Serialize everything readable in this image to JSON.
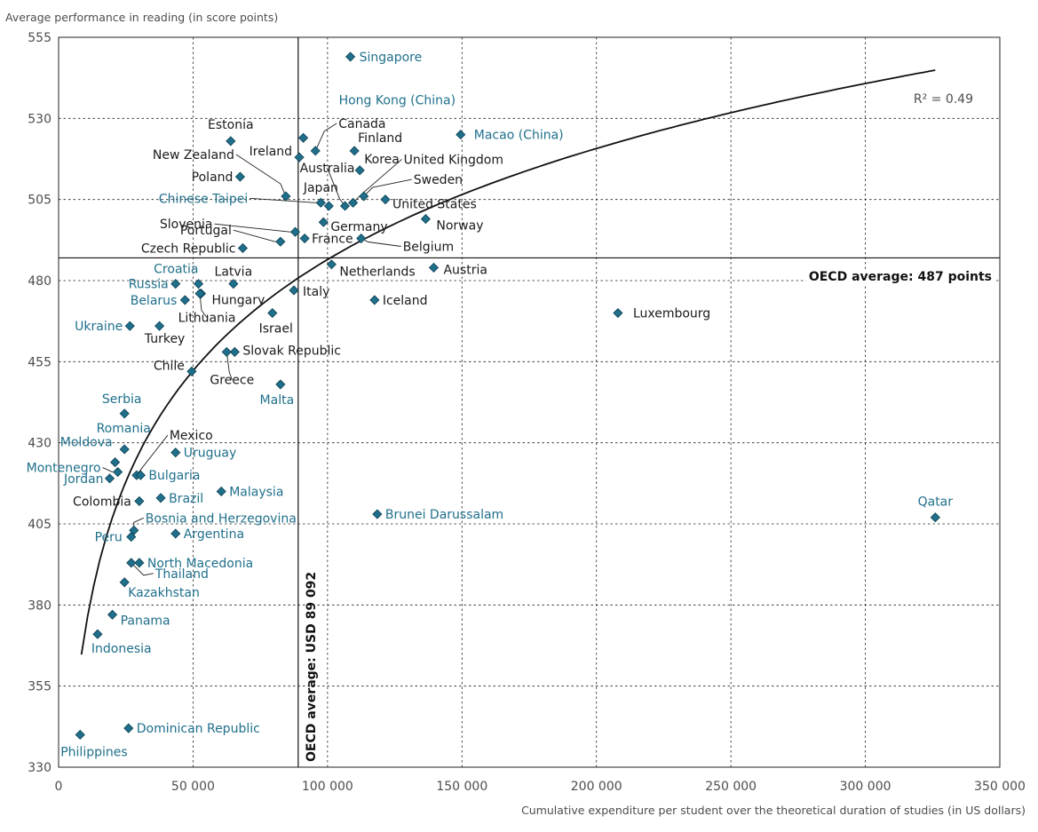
{
  "chart_data": {
    "type": "scatter",
    "ylabel": "Average performance in reading (in score points)",
    "xlabel": "Cumulative expenditure per student over the theoretical duration of studies (in US dollars)",
    "xlim": [
      0,
      350000
    ],
    "ylim": [
      330,
      555
    ],
    "x_ticks": [
      0,
      50000,
      100000,
      150000,
      200000,
      250000,
      300000,
      350000
    ],
    "x_tick_labels": [
      "0",
      "50 000",
      "100 000",
      "150 000",
      "200 000",
      "250 000",
      "300 000",
      "350 000"
    ],
    "y_ticks": [
      330,
      355,
      380,
      405,
      430,
      455,
      480,
      505,
      530,
      555
    ],
    "y_tick_labels": [
      "330",
      "355",
      "380",
      "405",
      "430",
      "455",
      "480",
      "505",
      "530",
      "555"
    ],
    "grid": "dashed",
    "marker_color": "#1f6f8b",
    "partner_color": "#1f6f8b",
    "oecd_color": "#1a1a1a",
    "trend": {
      "type": "logarithmic",
      "r2_label": "R² = 0.49",
      "x_start": 8500,
      "x_end": 326000
    },
    "reference_lines": {
      "horizontal": {
        "value": 487,
        "label": "OECD average: 487 points"
      },
      "vertical": {
        "value": 89092,
        "label": "OECD average: USD 89 092"
      }
    },
    "points": [
      {
        "name": "Singapore",
        "x": 108500,
        "y": 549,
        "group": "partner"
      },
      {
        "name": "Hong Kong (China)",
        "x": 91000,
        "y": 524,
        "group": "partner"
      },
      {
        "name": "Canada",
        "x": 95500,
        "y": 520,
        "group": "oecd"
      },
      {
        "name": "Estonia",
        "x": 64000,
        "y": 523,
        "group": "oecd"
      },
      {
        "name": "Ireland",
        "x": 89500,
        "y": 518,
        "group": "oecd"
      },
      {
        "name": "Finland",
        "x": 110000,
        "y": 520,
        "group": "oecd"
      },
      {
        "name": "Macao (China)",
        "x": 149500,
        "y": 525,
        "group": "partner"
      },
      {
        "name": "Korea",
        "x": 112000,
        "y": 514,
        "group": "oecd"
      },
      {
        "name": "New Zealand",
        "x": 84500,
        "y": 506,
        "group": "oecd"
      },
      {
        "name": "Poland",
        "x": 67500,
        "y": 512,
        "group": "oecd"
      },
      {
        "name": "Australia",
        "x": 106500,
        "y": 503,
        "group": "oecd"
      },
      {
        "name": "United Kingdom",
        "x": 109500,
        "y": 504,
        "group": "oecd"
      },
      {
        "name": "Sweden",
        "x": 113500,
        "y": 506,
        "group": "oecd"
      },
      {
        "name": "United States",
        "x": 121500,
        "y": 505,
        "group": "oecd"
      },
      {
        "name": "Chinese Taipei",
        "x": 97500,
        "y": 504,
        "group": "partner"
      },
      {
        "name": "Japan",
        "x": 100500,
        "y": 503,
        "group": "oecd"
      },
      {
        "name": "Germany",
        "x": 98500,
        "y": 498,
        "group": "oecd"
      },
      {
        "name": "Norway",
        "x": 136500,
        "y": 499,
        "group": "oecd"
      },
      {
        "name": "Slovenia",
        "x": 88000,
        "y": 495,
        "group": "oecd"
      },
      {
        "name": "Portugal",
        "x": 82500,
        "y": 492,
        "group": "oecd"
      },
      {
        "name": "France",
        "x": 91500,
        "y": 493,
        "group": "oecd"
      },
      {
        "name": "Belgium",
        "x": 112500,
        "y": 493,
        "group": "oecd"
      },
      {
        "name": "Czech Republic",
        "x": 68500,
        "y": 490,
        "group": "oecd"
      },
      {
        "name": "Netherlands",
        "x": 101500,
        "y": 485,
        "group": "oecd"
      },
      {
        "name": "Austria",
        "x": 139500,
        "y": 484,
        "group": "oecd"
      },
      {
        "name": "Croatia",
        "x": 52000,
        "y": 479,
        "group": "partner"
      },
      {
        "name": "Russia",
        "x": 43500,
        "y": 479,
        "group": "partner"
      },
      {
        "name": "Latvia",
        "x": 65000,
        "y": 479,
        "group": "oecd"
      },
      {
        "name": "Belarus",
        "x": 47000,
        "y": 474,
        "group": "partner"
      },
      {
        "name": "Hungary",
        "x": 53000,
        "y": 476,
        "group": "oecd"
      },
      {
        "name": "Italy",
        "x": 87500,
        "y": 477,
        "group": "oecd"
      },
      {
        "name": "Iceland",
        "x": 117500,
        "y": 474,
        "group": "oecd"
      },
      {
        "name": "Israel",
        "x": 79500,
        "y": 470,
        "group": "oecd"
      },
      {
        "name": "Luxembourg",
        "x": 208000,
        "y": 470,
        "group": "oecd"
      },
      {
        "name": "Lithuania",
        "x": 52500,
        "y": 476,
        "group": "oecd"
      },
      {
        "name": "Ukraine",
        "x": 26500,
        "y": 466,
        "group": "partner"
      },
      {
        "name": "Turkey",
        "x": 37500,
        "y": 466,
        "group": "oecd"
      },
      {
        "name": "Slovak Republic",
        "x": 65500,
        "y": 458,
        "group": "oecd"
      },
      {
        "name": "Greece",
        "x": 62500,
        "y": 458,
        "group": "oecd"
      },
      {
        "name": "Chile",
        "x": 49500,
        "y": 452,
        "group": "oecd"
      },
      {
        "name": "Malta",
        "x": 82500,
        "y": 448,
        "group": "partner"
      },
      {
        "name": "Serbia",
        "x": 24500,
        "y": 439,
        "group": "partner"
      },
      {
        "name": "Romania",
        "x": 24500,
        "y": 428,
        "group": "partner"
      },
      {
        "name": "Moldova",
        "x": 21000,
        "y": 424,
        "group": "partner"
      },
      {
        "name": "Uruguay",
        "x": 43500,
        "y": 427,
        "group": "partner"
      },
      {
        "name": "Mexico",
        "x": 29000,
        "y": 420,
        "group": "oecd"
      },
      {
        "name": "Montenegro",
        "x": 22000,
        "y": 421,
        "group": "partner"
      },
      {
        "name": "Jordan",
        "x": 19000,
        "y": 419,
        "group": "partner"
      },
      {
        "name": "Bulgaria",
        "x": 30500,
        "y": 420,
        "group": "partner"
      },
      {
        "name": "Malaysia",
        "x": 60500,
        "y": 415,
        "group": "partner"
      },
      {
        "name": "Colombia",
        "x": 30000,
        "y": 412,
        "group": "oecd"
      },
      {
        "name": "Brazil",
        "x": 38000,
        "y": 413,
        "group": "partner"
      },
      {
        "name": "Brunei Darussalam",
        "x": 118500,
        "y": 408,
        "group": "partner"
      },
      {
        "name": "Qatar",
        "x": 326000,
        "y": 407,
        "group": "partner"
      },
      {
        "name": "Bosnia and Herzegovina",
        "x": 28000,
        "y": 403,
        "group": "partner"
      },
      {
        "name": "Peru",
        "x": 27000,
        "y": 401,
        "group": "partner"
      },
      {
        "name": "Argentina",
        "x": 43500,
        "y": 402,
        "group": "partner"
      },
      {
        "name": "North Macedonia",
        "x": 30000,
        "y": 393,
        "group": "partner"
      },
      {
        "name": "Thailand",
        "x": 27000,
        "y": 393,
        "group": "partner"
      },
      {
        "name": "Kazakhstan",
        "x": 24500,
        "y": 387,
        "group": "partner"
      },
      {
        "name": "Panama",
        "x": 20000,
        "y": 377,
        "group": "partner"
      },
      {
        "name": "Indonesia",
        "x": 14500,
        "y": 371,
        "group": "partner"
      },
      {
        "name": "Dominican Republic",
        "x": 26000,
        "y": 342,
        "group": "partner"
      },
      {
        "name": "Philippines",
        "x": 8000,
        "y": 340,
        "group": "partner"
      }
    ]
  }
}
